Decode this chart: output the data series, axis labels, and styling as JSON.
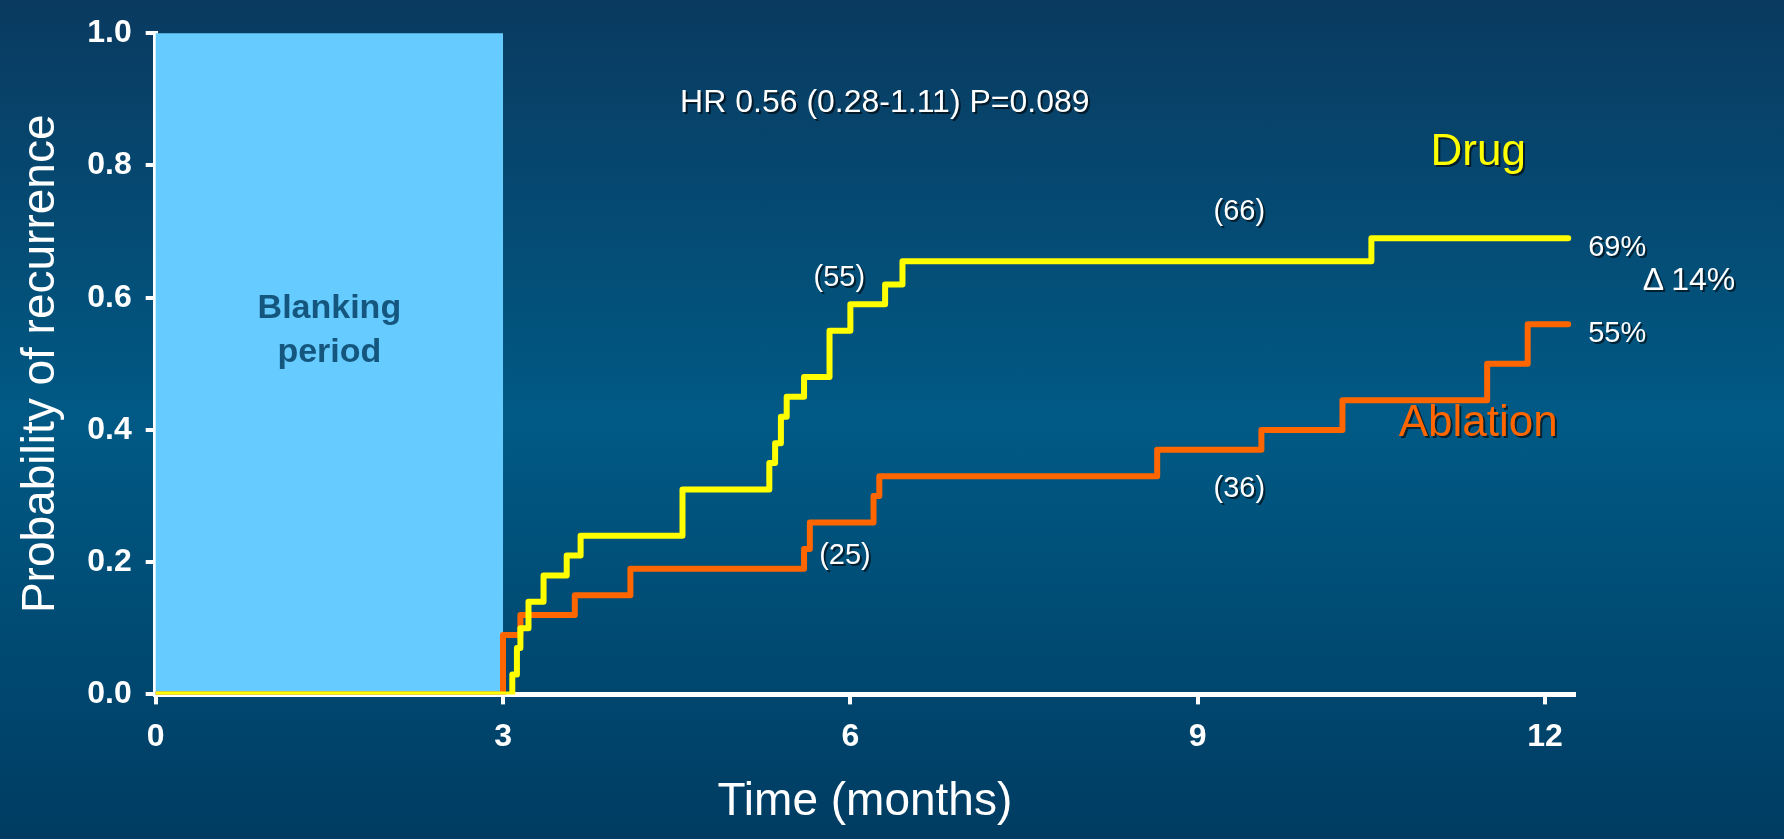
{
  "chart_data": {
    "type": "step",
    "xlabel": "Time (months)",
    "ylabel": "Probability of recurrence",
    "xlim": [
      0,
      12.25
    ],
    "xticks": [
      0,
      3,
      6,
      9,
      12
    ],
    "ylim": [
      0,
      1
    ],
    "yticks": [
      {
        "value": 0,
        "label": "0.0"
      },
      {
        "value": 0.2,
        "label": "0.2"
      },
      {
        "value": 0.4,
        "label": "0.4"
      },
      {
        "value": 0.6,
        "label": "0.6"
      },
      {
        "value": 0.8,
        "label": "0.8"
      },
      {
        "value": 1,
        "label": "1.0"
      }
    ],
    "grid": false,
    "legend": false,
    "marker": "none",
    "line_style": "solid",
    "bands": [
      {
        "axis": "x",
        "from": 0,
        "to": 3,
        "label": "Blanking period",
        "color": "#66ccff"
      }
    ],
    "series": [
      {
        "name": "Drug",
        "color": "#ffff00",
        "x": [
          0,
          3.08,
          3.12,
          3.15,
          3.22,
          3.35,
          3.55,
          3.67,
          4.55,
          5.3,
          5.35,
          5.4,
          5.45,
          5.6,
          5.82,
          6.0,
          6.3,
          6.45,
          10.5,
          12.2
        ],
        "values": [
          0,
          0.03,
          0.07,
          0.1,
          0.14,
          0.18,
          0.21,
          0.24,
          0.31,
          0.35,
          0.38,
          0.42,
          0.45,
          0.48,
          0.55,
          0.59,
          0.62,
          0.655,
          0.69,
          0.69
        ]
      },
      {
        "name": "Ablation",
        "color": "#ff6600",
        "x": [
          0,
          3.0,
          3.15,
          3.62,
          4.1,
          5.6,
          5.65,
          6.2,
          6.25,
          8.65,
          9.55,
          10.25,
          11.5,
          11.85,
          12.2
        ],
        "values": [
          0,
          0.09,
          0.12,
          0.15,
          0.19,
          0.22,
          0.26,
          0.3,
          0.33,
          0.37,
          0.4,
          0.445,
          0.5,
          0.56,
          0.56
        ]
      }
    ],
    "annotations": [
      "HR 0.56 (0.28-1.11) P=0.089",
      "Δ 14%",
      "(55)",
      "(66)",
      "(25)",
      "(36)",
      {
        "text": "69%",
        "x": 12.2,
        "y": 0.69
      },
      {
        "text": "55%",
        "x": 12.2,
        "y": 0.56
      }
    ]
  }
}
